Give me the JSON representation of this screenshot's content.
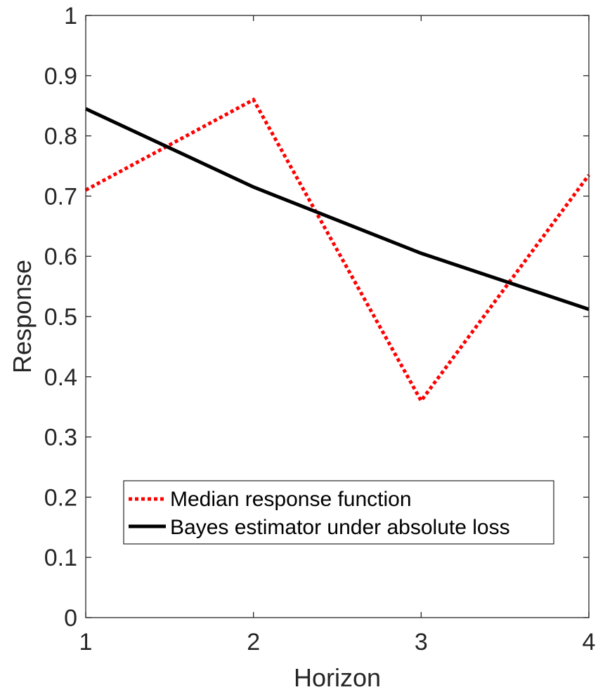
{
  "chart_data": {
    "type": "line",
    "xlabel": "Horizon",
    "ylabel": "Response",
    "xlim": [
      1,
      4
    ],
    "ylim": [
      0,
      1
    ],
    "x": [
      1,
      2,
      3,
      4
    ],
    "xticks": [
      "1",
      "2",
      "3",
      "4"
    ],
    "yticks": [
      "0",
      "0.1",
      "0.2",
      "0.3",
      "0.4",
      "0.5",
      "0.6",
      "0.7",
      "0.8",
      "0.9",
      "1"
    ],
    "grid": false,
    "legend_location": "bottom-right",
    "series": [
      {
        "name": "Median response function",
        "values": [
          0.71,
          0.86,
          0.36,
          0.735
        ],
        "color": "#ff0000",
        "style": "dotted"
      },
      {
        "name": "Bayes estimator under absolute loss",
        "values": [
          0.845,
          0.715,
          0.605,
          0.512
        ],
        "color": "#000000",
        "style": "solid"
      }
    ]
  }
}
